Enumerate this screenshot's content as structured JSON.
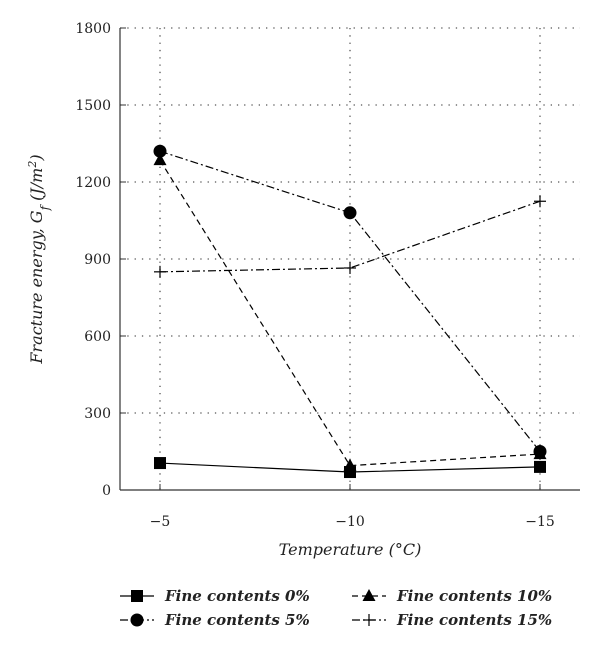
{
  "chart_data": {
    "type": "line",
    "x": [
      "−5",
      "−10",
      "−15"
    ],
    "xlabel": "Temperature (°C)",
    "ylabel": {
      "text": "Fracture energy, G",
      "sub": "f",
      "unit_open": " (J/m",
      "sup": "2",
      "unit_close": ")"
    },
    "ylim": [
      0,
      1800
    ],
    "yticks": [
      "0",
      "300",
      "600",
      "900",
      "1200",
      "1500",
      "1800"
    ],
    "grid": true,
    "legend_position": "bottom",
    "series": [
      {
        "name": "Fine contents 0%",
        "values": [
          105,
          70,
          90
        ],
        "marker": "square",
        "dash": "solid",
        "color": "#000000"
      },
      {
        "name": "Fine contents 5%",
        "values": [
          1320,
          1080,
          150
        ],
        "marker": "circle",
        "dash": "dashdot",
        "color": "#000000"
      },
      {
        "name": "Fine contents 10%",
        "values": [
          1285,
          95,
          140
        ],
        "marker": "triangle",
        "dash": "dashed",
        "color": "#000000"
      },
      {
        "name": "Fine contents 15%",
        "values": [
          850,
          865,
          1125
        ],
        "marker": "plus",
        "dash": "dashdot",
        "color": "#000000"
      }
    ]
  }
}
